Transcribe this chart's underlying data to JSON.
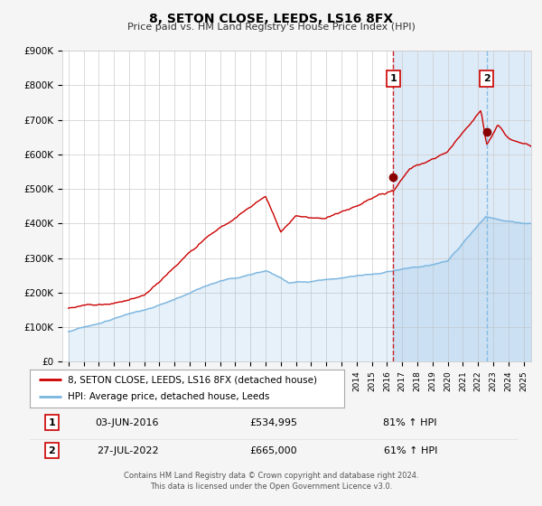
{
  "title": "8, SETON CLOSE, LEEDS, LS16 8FX",
  "subtitle": "Price paid vs. HM Land Registry's House Price Index (HPI)",
  "legend_entry1": "8, SETON CLOSE, LEEDS, LS16 8FX (detached house)",
  "legend_entry2": "HPI: Average price, detached house, Leeds",
  "transaction1_date": "03-JUN-2016",
  "transaction1_price": "£534,995",
  "transaction1_hpi": "81% ↑ HPI",
  "transaction2_date": "27-JUL-2022",
  "transaction2_price": "£665,000",
  "transaction2_hpi": "61% ↑ HPI",
  "footer": "Contains HM Land Registry data © Crown copyright and database right 2024.\nThis data is licensed under the Open Government Licence v3.0.",
  "hpi_color": "#7ab5e0",
  "price_color": "#cc0000",
  "bg_color": "#f5f5f5",
  "plot_bg": "#ffffff",
  "highlight_bg": "#ddeaf7",
  "marker_color": "#880000",
  "vline1_color": "#cc0000",
  "vline2_color": "#7ab5e0",
  "ylim": [
    0,
    900000
  ],
  "yticks": [
    0,
    100000,
    200000,
    300000,
    400000,
    500000,
    600000,
    700000,
    800000,
    900000
  ],
  "ytick_labels": [
    "£0",
    "£100K",
    "£200K",
    "£300K",
    "£400K",
    "£500K",
    "£600K",
    "£700K",
    "£800K",
    "£900K"
  ],
  "xlim_start": 1994.6,
  "xlim_end": 2025.5,
  "transaction1_year": 2016.42,
  "transaction2_year": 2022.56,
  "transaction1_value": 534995,
  "transaction2_value": 665000
}
